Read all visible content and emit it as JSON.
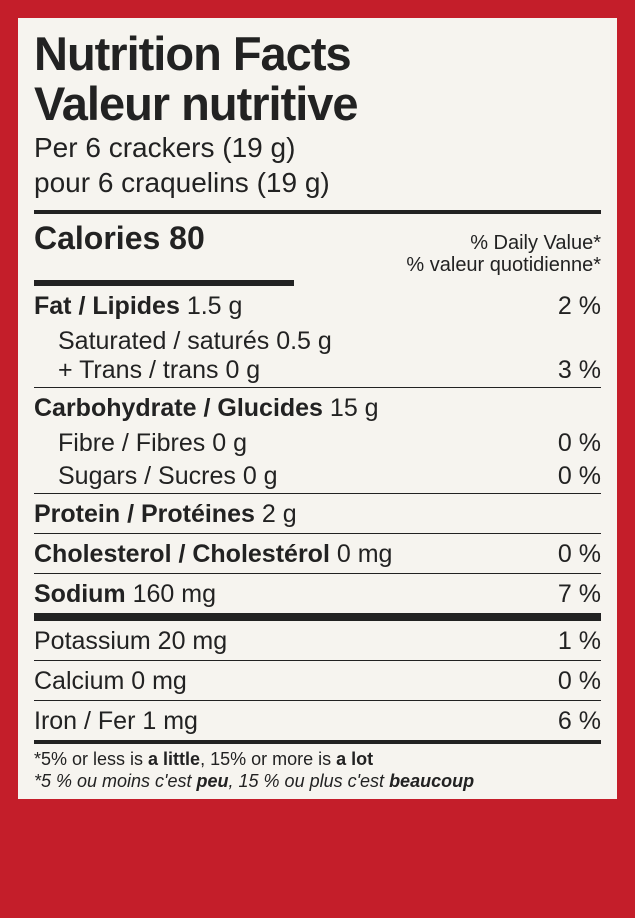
{
  "title_en": "Nutrition Facts",
  "title_fr": "Valeur nutritive",
  "serving_en": "Per 6 crackers (19 g)",
  "serving_fr": "pour 6 craquelins (19 g)",
  "calories_label": "Calories",
  "calories_value": "80",
  "dv_en": "% Daily Value*",
  "dv_fr": "% valeur quotidienne*",
  "fat": {
    "name": "Fat / Lipides",
    "amount": "1.5 g",
    "pct": "2 %"
  },
  "sat": {
    "name": "Saturated / saturés",
    "amount": "0.5 g"
  },
  "trans": {
    "name": "+ Trans / trans",
    "amount": "0 g",
    "pct": "3 %"
  },
  "carb": {
    "name": "Carbohydrate / Glucides",
    "amount": "15 g"
  },
  "fibre": {
    "name": "Fibre / Fibres",
    "amount": "0 g",
    "pct": "0 %"
  },
  "sugar": {
    "name": "Sugars / Sucres",
    "amount": "0 g",
    "pct": "0 %"
  },
  "protein": {
    "name": "Protein / Protéines",
    "amount": "2 g"
  },
  "chol": {
    "name": "Cholesterol / Cholestérol",
    "amount": "0 mg",
    "pct": "0 %"
  },
  "sodium": {
    "name": "Sodium",
    "amount": "160 mg",
    "pct": "7 %"
  },
  "potassium": {
    "name": "Potassium",
    "amount": "20 mg",
    "pct": "1 %"
  },
  "calcium": {
    "name": "Calcium",
    "amount": "0 mg",
    "pct": "0 %"
  },
  "iron": {
    "name": "Iron / Fer",
    "amount": "1 mg",
    "pct": "6 %"
  },
  "foot_en_1": "*5% or less is ",
  "foot_en_2": "a little",
  "foot_en_3": ", 15% or more is ",
  "foot_en_4": "a lot",
  "foot_fr_1": "*5 % ou moins c'est ",
  "foot_fr_2": "peu",
  "foot_fr_3": ", 15 % ou plus c'est ",
  "foot_fr_4": "beaucoup"
}
